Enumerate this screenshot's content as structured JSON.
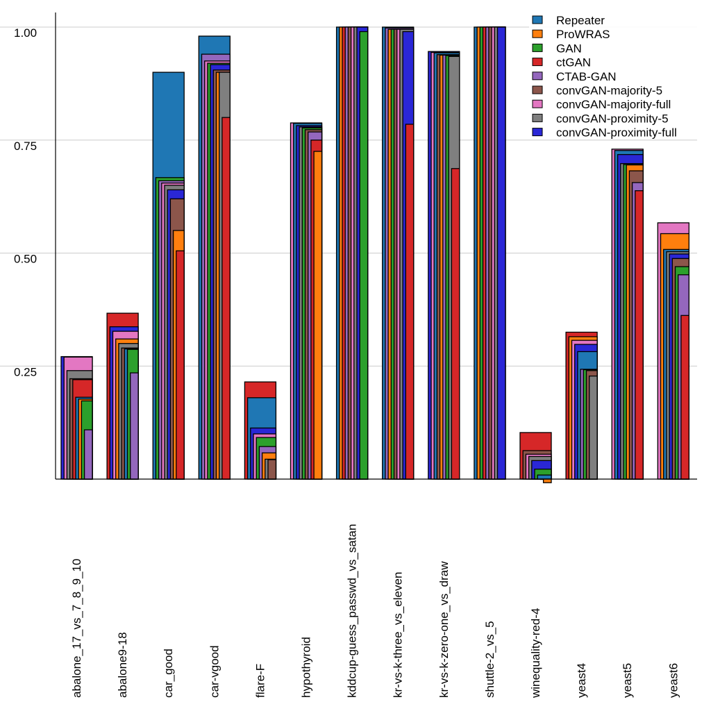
{
  "chart_data": {
    "type": "bar",
    "style": "overlapping-nested",
    "title": "",
    "xlabel": "",
    "ylabel": "",
    "ylim": [
      0,
      1.0
    ],
    "yticks": [
      0.25,
      0.5,
      0.75,
      1.0
    ],
    "ytick_labels": [
      "0.25",
      "0.50",
      "0.75",
      "1.00"
    ],
    "grid": true,
    "legend_position": "top-right",
    "categories": [
      "abalone_17_vs_7_8_9_10",
      "abalone9-18",
      "car_good",
      "car-vgood",
      "flare-F",
      "hypothyroid",
      "kddcup-guess_passwd_vs_satan",
      "kr-vs-k-three_vs_eleven",
      "kr-vs-k-zero-one_vs_draw",
      "shuttle-2_vs_5",
      "winequality-red-4",
      "yeast4",
      "yeast5",
      "yeast6"
    ],
    "series": [
      {
        "name": "Repeater",
        "color": "#1f77b4",
        "values": [
          0.181,
          0.288,
          0.9,
          0.98,
          0.18,
          0.787,
          1.0,
          1.0,
          0.943,
          1.0,
          0.009,
          0.282,
          0.727,
          0.508
        ]
      },
      {
        "name": "ProWRAS",
        "color": "#ff7f0e",
        "values": [
          0.177,
          0.31,
          0.55,
          0.9,
          0.058,
          0.725,
          1.0,
          0.995,
          0.938,
          1.0,
          -0.008,
          0.315,
          0.695,
          0.543
        ]
      },
      {
        "name": "GAN",
        "color": "#2ca02c",
        "values": [
          0.173,
          0.287,
          0.667,
          0.92,
          0.092,
          0.777,
          0.99,
          0.995,
          0.937,
          1.0,
          0.022,
          0.242,
          0.696,
          0.47
        ]
      },
      {
        "name": "ctGAN",
        "color": "#d62728",
        "values": [
          0.22,
          0.367,
          0.505,
          0.8,
          0.215,
          0.75,
          1.0,
          0.785,
          0.687,
          1.0,
          0.103,
          0.325,
          0.638,
          0.362
        ]
      },
      {
        "name": "CTAB-GAN",
        "color": "#9467bd",
        "values": [
          0.109,
          0.235,
          0.66,
          0.94,
          0.072,
          0.768,
          1.0,
          0.998,
          0.938,
          1.0,
          0.0,
          0.243,
          0.656,
          0.452
        ]
      },
      {
        "name": "convGAN-majority-5",
        "color": "#8c564b",
        "values": [
          0.222,
          0.29,
          0.62,
          0.905,
          0.043,
          0.773,
          1.0,
          0.995,
          0.939,
          1.0,
          0.063,
          0.24,
          0.682,
          0.488
        ]
      },
      {
        "name": "convGAN-majority-full",
        "color": "#e377c2",
        "values": [
          0.27,
          0.327,
          0.655,
          0.925,
          0.1,
          0.788,
          1.0,
          0.995,
          0.944,
          1.0,
          0.055,
          0.307,
          0.73,
          0.567
        ]
      },
      {
        "name": "convGAN-proximity-5",
        "color": "#7f7f7f",
        "values": [
          0.24,
          0.3,
          0.65,
          0.9,
          0.044,
          0.779,
          1.0,
          0.995,
          0.935,
          1.0,
          0.05,
          0.228,
          0.698,
          0.503
        ]
      },
      {
        "name": "convGAN-proximity-full",
        "color": "#2a27d6",
        "values": [
          0.271,
          0.337,
          0.64,
          0.917,
          0.113,
          0.782,
          1.0,
          0.99,
          0.946,
          1.0,
          0.041,
          0.298,
          0.718,
          0.498
        ]
      }
    ]
  }
}
